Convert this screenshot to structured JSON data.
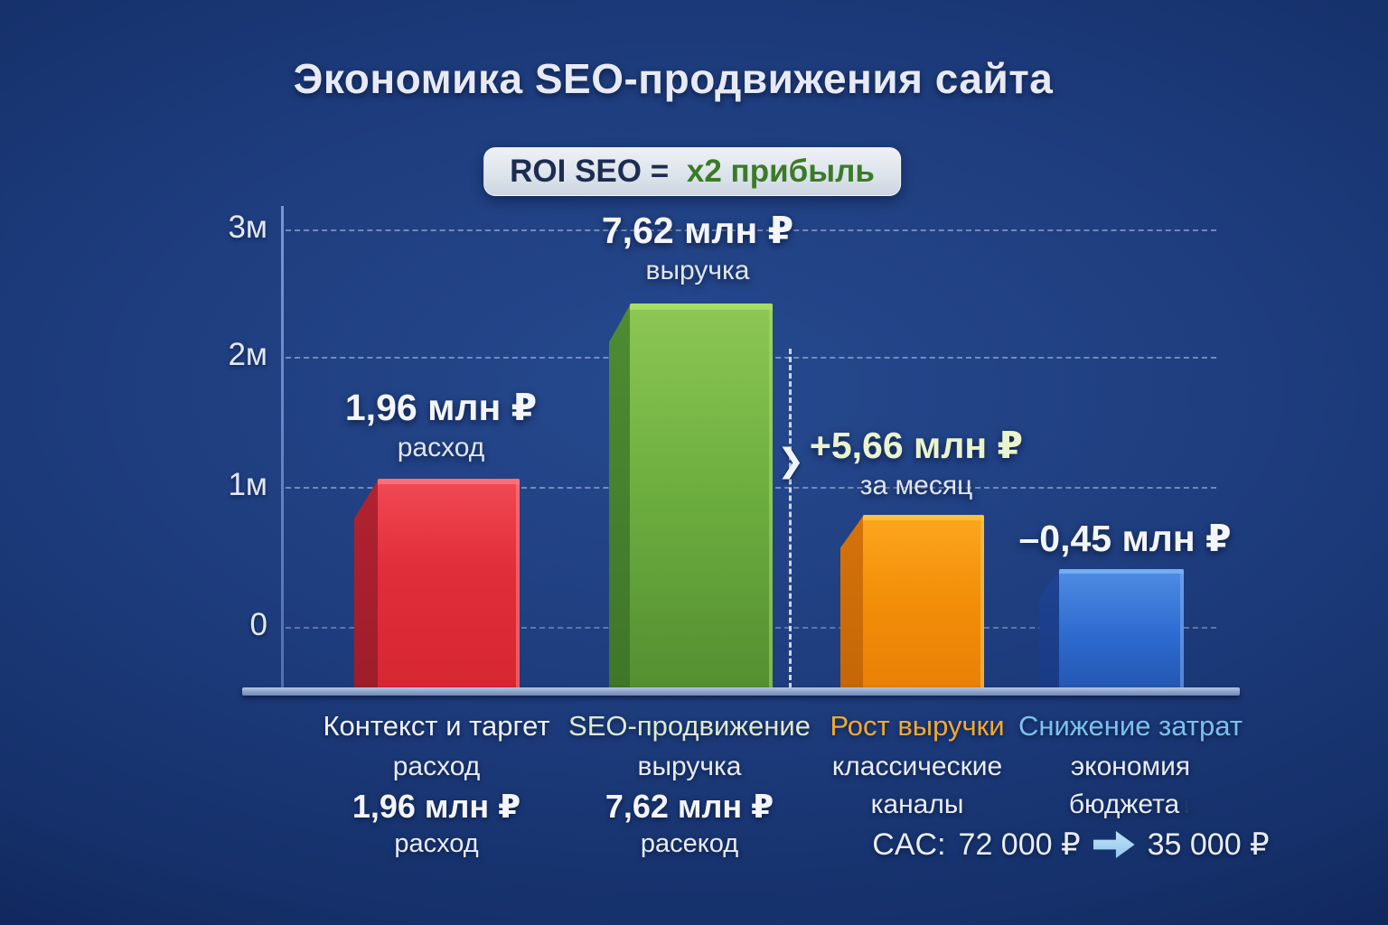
{
  "title": "Экономика SEO-продвижения сайта",
  "roi_badge": {
    "prefix": "ROI SEO =",
    "highlight": "x2 прибыль"
  },
  "y_axis": {
    "tick_3m": "3м",
    "tick_2m": "2м",
    "tick_1m": "1м",
    "tick_0": "0"
  },
  "bar_annotations": {
    "context": {
      "value": "1,96 млн ₽",
      "sub": "расход"
    },
    "seo": {
      "value": "7,62 млн ₽",
      "sub": "выручка"
    },
    "delta": {
      "value": "+5,66 млн ₽",
      "sub": "за месяц"
    },
    "savings": {
      "value": "–0,45 млн ₽"
    }
  },
  "icons": {
    "delta_chevron": "❯",
    "budget_down_arrow": "↓"
  },
  "columns": {
    "context": {
      "title": "Контекст и таргет",
      "line1": "расход",
      "line2": "1,96 млн ₽",
      "line3": "расход"
    },
    "seo": {
      "title": "SEO-продвижение",
      "line1": "выручка",
      "line2": "7,62 млн ₽",
      "line3": "расекод"
    },
    "growth": {
      "title": "Рост выручки",
      "line1": "классические",
      "line2": "каналы"
    },
    "savings": {
      "title": "Снижение затрат",
      "line1": "экономия",
      "line2": "бюджета"
    }
  },
  "cac": {
    "label": "CAC:",
    "from": "72 000 ₽",
    "to": "35 000 ₽"
  },
  "colors": {
    "background": "#15306a",
    "bar_red": "#e12e3a",
    "bar_green": "#6fb040",
    "bar_orange": "#f28e08",
    "bar_blue": "#2e6bd0",
    "accent_green_text": "#3a7b28",
    "accent_orange_text": "#f2a930",
    "accent_blue_text": "#7cc0ef",
    "delta_text": "#eaf3cd"
  },
  "chart_data": {
    "type": "bar",
    "title": "Экономика SEO-продвижения сайта",
    "categories": [
      "Контекст и таргет (расход)",
      "SEO-продвижение (выручка)",
      "Рост выручки (классические каналы)",
      "Снижение затрат (экономия бюджета)"
    ],
    "values": [
      1.96,
      7.62,
      5.66,
      -0.45
    ],
    "value_labels": [
      "1,96 млн ₽ расход",
      "7,62 млн ₽ выручка",
      "+5,66 млн ₽ за месяц",
      "–0,45 млн ₽"
    ],
    "bar_colors": [
      "#e12e3a",
      "#6fb040",
      "#f28e08",
      "#2e6bd0"
    ],
    "ylabel": "млн ₽",
    "y_ticks": [
      "3м",
      "2м",
      "1м",
      "0"
    ],
    "ylim": [
      0,
      3.5
    ],
    "grid": true,
    "legend": false,
    "annotations": [
      "ROI SEO = x2 прибыль",
      "+5,66 млн ₽ за месяц",
      "CAC: 72 000 ₽ → 35 000 ₽"
    ]
  }
}
